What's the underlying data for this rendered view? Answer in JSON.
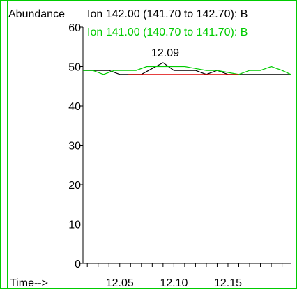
{
  "chart_data": {
    "type": "line",
    "ylabel": "Abundance",
    "xlabel": "Time-->",
    "title_lines": [
      {
        "text": "Ion 142.00 (141.70 to 142.70): B",
        "color": "#000000"
      },
      {
        "text": "Ion 141.00 (140.70 to 141.70): B",
        "color": "#00cc00"
      }
    ],
    "ylim": [
      0,
      60
    ],
    "yticks": [
      0,
      10,
      20,
      30,
      40,
      50,
      60
    ],
    "xlim": [
      12.016,
      12.208
    ],
    "xticks_labeled": [
      12.05,
      12.1,
      12.15
    ],
    "tick_labels": [
      "12.05",
      "12.10",
      "12.15"
    ],
    "minor_tick_step": 0.01,
    "peak_annotation": {
      "label": "12.09",
      "x": 12.09,
      "y": 51
    },
    "series": [
      {
        "color": "#000000",
        "x": [
          12.016,
          12.03,
          12.04,
          12.05,
          12.06,
          12.07,
          12.08,
          12.09,
          12.1,
          12.11,
          12.12,
          12.13,
          12.14,
          12.15,
          12.16,
          12.17,
          12.18,
          12.19,
          12.2,
          12.208
        ],
        "y": [
          49,
          49,
          49,
          48,
          48,
          48,
          49.5,
          51,
          49,
          49,
          49,
          48,
          49,
          48,
          48,
          48,
          48,
          48,
          48,
          48
        ]
      },
      {
        "color": "#00cc00",
        "x": [
          12.016,
          12.025,
          12.035,
          12.045,
          12.055,
          12.065,
          12.075,
          12.085,
          12.1,
          12.11,
          12.12,
          12.13,
          12.14,
          12.15,
          12.16,
          12.17,
          12.18,
          12.19,
          12.2,
          12.208
        ],
        "y": [
          49,
          49,
          48,
          49,
          49,
          49,
          50,
          50,
          50,
          50,
          49.5,
          49,
          49,
          48.5,
          48,
          49,
          49,
          50,
          49,
          48
        ]
      },
      {
        "color": "#dd0000",
        "x": [
          12.058,
          12.16
        ],
        "y": [
          48,
          48
        ]
      }
    ]
  }
}
